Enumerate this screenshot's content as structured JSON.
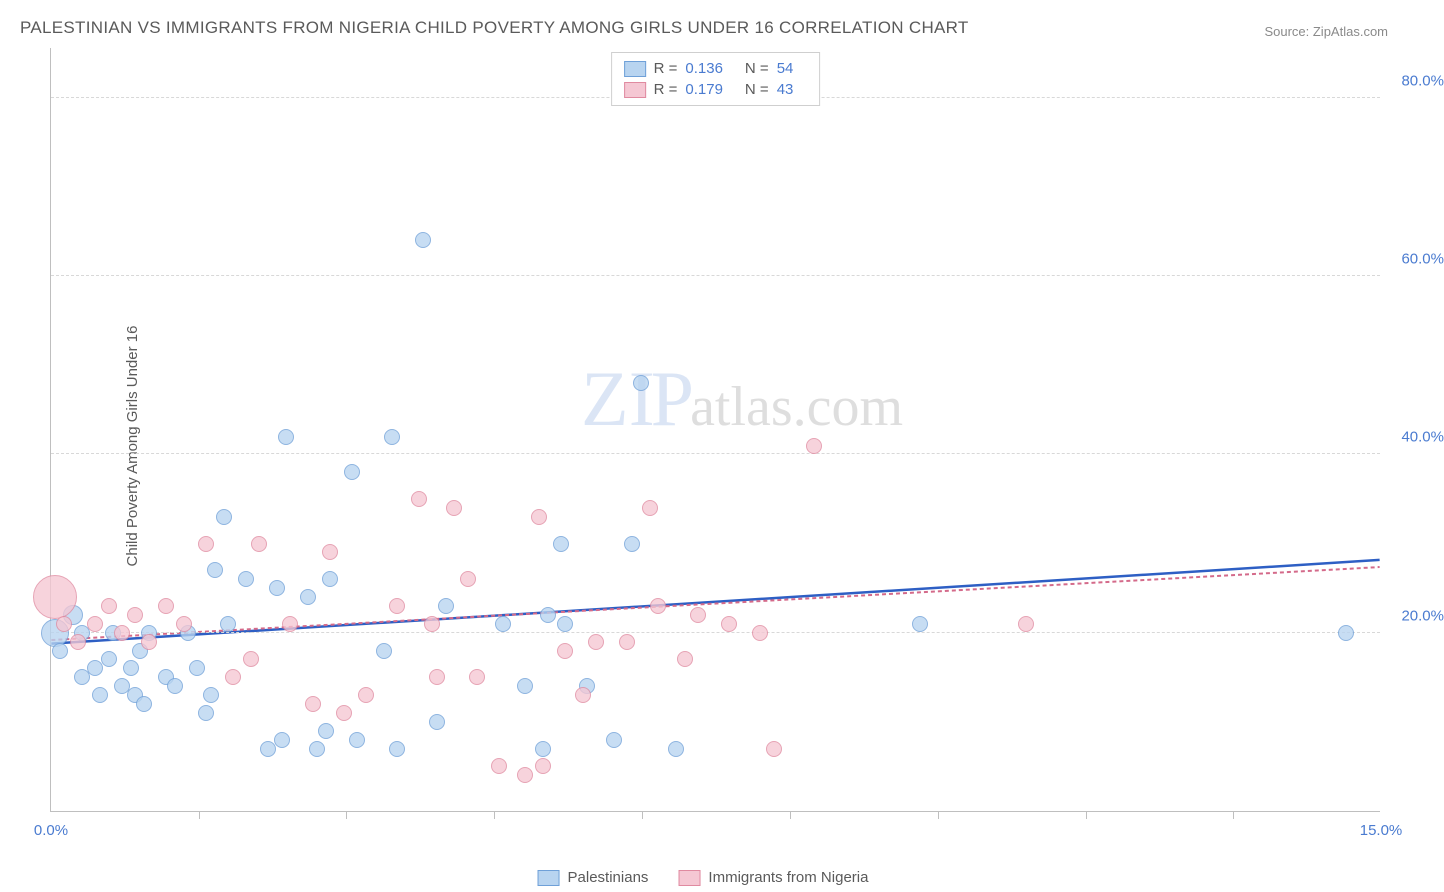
{
  "title": "PALESTINIAN VS IMMIGRANTS FROM NIGERIA CHILD POVERTY AMONG GIRLS UNDER 16 CORRELATION CHART",
  "source_label": "Source: ZipAtlas.com",
  "y_axis_label": "Child Poverty Among Girls Under 16",
  "watermark": {
    "zip": "ZIP",
    "atlas": "atlas.com"
  },
  "chart": {
    "type": "scatter",
    "xlim": [
      0,
      15.0
    ],
    "ylim": [
      0,
      85.7
    ],
    "x_ticks": [
      0.0,
      15.0
    ],
    "x_tick_labels": [
      "0.0%",
      "15.0%"
    ],
    "x_minor_ticks": [
      1.67,
      3.33,
      5.0,
      6.67,
      8.33,
      10.0,
      11.67,
      13.33
    ],
    "y_gridlines": [
      20.0,
      40.0,
      60.0,
      80.0
    ],
    "y_tick_labels": [
      "20.0%",
      "40.0%",
      "60.0%",
      "80.0%"
    ],
    "background_color": "#ffffff",
    "grid_color": "#d8d8d8",
    "axis_line_color": "#bfbfbf",
    "tick_label_color": "#4a7bd0",
    "axis_label_color": "#5a5a5a",
    "axis_label_fontsize": 15,
    "marker_radius": 8,
    "series": [
      {
        "name": "Palestinians",
        "fill_color": "#b8d4f0",
        "stroke_color": "#6fa0d8",
        "R": "0.136",
        "N": "54",
        "trend": {
          "x1": 0,
          "y1": 18.8,
          "x2": 15.0,
          "y2": 28.2,
          "color": "#2e5fc4",
          "width": 2.5
        },
        "points": [
          {
            "x": 0.05,
            "y": 20,
            "r": 14
          },
          {
            "x": 0.1,
            "y": 18,
            "r": 8
          },
          {
            "x": 0.25,
            "y": 22,
            "r": 10
          },
          {
            "x": 0.35,
            "y": 20,
            "r": 8
          },
          {
            "x": 0.35,
            "y": 15,
            "r": 8
          },
          {
            "x": 0.5,
            "y": 16,
            "r": 8
          },
          {
            "x": 0.55,
            "y": 13,
            "r": 8
          },
          {
            "x": 0.65,
            "y": 17,
            "r": 8
          },
          {
            "x": 0.7,
            "y": 20,
            "r": 8
          },
          {
            "x": 0.8,
            "y": 14,
            "r": 8
          },
          {
            "x": 0.9,
            "y": 16,
            "r": 8
          },
          {
            "x": 0.95,
            "y": 13,
            "r": 8
          },
          {
            "x": 1.0,
            "y": 18,
            "r": 8
          },
          {
            "x": 1.05,
            "y": 12,
            "r": 8
          },
          {
            "x": 1.1,
            "y": 20,
            "r": 8
          },
          {
            "x": 1.3,
            "y": 15,
            "r": 8
          },
          {
            "x": 1.4,
            "y": 14,
            "r": 8
          },
          {
            "x": 1.55,
            "y": 20,
            "r": 8
          },
          {
            "x": 1.65,
            "y": 16,
            "r": 8
          },
          {
            "x": 1.75,
            "y": 11,
            "r": 8
          },
          {
            "x": 1.8,
            "y": 13,
            "r": 8
          },
          {
            "x": 1.85,
            "y": 27,
            "r": 8
          },
          {
            "x": 1.95,
            "y": 33,
            "r": 8
          },
          {
            "x": 2.0,
            "y": 21,
            "r": 8
          },
          {
            "x": 2.2,
            "y": 26,
            "r": 8
          },
          {
            "x": 2.45,
            "y": 7,
            "r": 8
          },
          {
            "x": 2.55,
            "y": 25,
            "r": 8
          },
          {
            "x": 2.6,
            "y": 8,
            "r": 8
          },
          {
            "x": 2.65,
            "y": 42,
            "r": 8
          },
          {
            "x": 2.9,
            "y": 24,
            "r": 8
          },
          {
            "x": 3.0,
            "y": 7,
            "r": 8
          },
          {
            "x": 3.1,
            "y": 9,
            "r": 8
          },
          {
            "x": 3.15,
            "y": 26,
            "r": 8
          },
          {
            "x": 3.4,
            "y": 38,
            "r": 8
          },
          {
            "x": 3.45,
            "y": 8,
            "r": 8
          },
          {
            "x": 3.75,
            "y": 18,
            "r": 8
          },
          {
            "x": 3.85,
            "y": 42,
            "r": 8
          },
          {
            "x": 3.9,
            "y": 7,
            "r": 8
          },
          {
            "x": 4.2,
            "y": 64,
            "r": 8
          },
          {
            "x": 4.35,
            "y": 10,
            "r": 8
          },
          {
            "x": 4.45,
            "y": 23,
            "r": 8
          },
          {
            "x": 5.1,
            "y": 21,
            "r": 8
          },
          {
            "x": 5.35,
            "y": 14,
            "r": 8
          },
          {
            "x": 5.55,
            "y": 7,
            "r": 8
          },
          {
            "x": 5.6,
            "y": 22,
            "r": 8
          },
          {
            "x": 5.75,
            "y": 30,
            "r": 8
          },
          {
            "x": 5.8,
            "y": 21,
            "r": 8
          },
          {
            "x": 6.05,
            "y": 14,
            "r": 8
          },
          {
            "x": 6.35,
            "y": 8,
            "r": 8
          },
          {
            "x": 6.55,
            "y": 30,
            "r": 8
          },
          {
            "x": 6.65,
            "y": 48,
            "r": 8
          },
          {
            "x": 7.05,
            "y": 7,
            "r": 8
          },
          {
            "x": 9.8,
            "y": 21,
            "r": 8
          },
          {
            "x": 14.6,
            "y": 20,
            "r": 8
          }
        ]
      },
      {
        "name": "Immigrants from Nigeria",
        "fill_color": "#f5c7d3",
        "stroke_color": "#e08aa0",
        "R": "0.179",
        "N": "43",
        "trend": {
          "x1": 0,
          "y1": 19.2,
          "x2": 15.0,
          "y2": 27.4,
          "color": "#d46a8a",
          "width": 2,
          "dash": "4 3"
        },
        "points": [
          {
            "x": 0.05,
            "y": 24,
            "r": 22
          },
          {
            "x": 0.15,
            "y": 21,
            "r": 8
          },
          {
            "x": 0.3,
            "y": 19,
            "r": 8
          },
          {
            "x": 0.5,
            "y": 21,
            "r": 8
          },
          {
            "x": 0.65,
            "y": 23,
            "r": 8
          },
          {
            "x": 0.8,
            "y": 20,
            "r": 8
          },
          {
            "x": 0.95,
            "y": 22,
            "r": 8
          },
          {
            "x": 1.1,
            "y": 19,
            "r": 8
          },
          {
            "x": 1.3,
            "y": 23,
            "r": 8
          },
          {
            "x": 1.5,
            "y": 21,
            "r": 8
          },
          {
            "x": 1.75,
            "y": 30,
            "r": 8
          },
          {
            "x": 2.05,
            "y": 15,
            "r": 8
          },
          {
            "x": 2.25,
            "y": 17,
            "r": 8
          },
          {
            "x": 2.35,
            "y": 30,
            "r": 8
          },
          {
            "x": 2.7,
            "y": 21,
            "r": 8
          },
          {
            "x": 2.95,
            "y": 12,
            "r": 8
          },
          {
            "x": 3.15,
            "y": 29,
            "r": 8
          },
          {
            "x": 3.3,
            "y": 11,
            "r": 8
          },
          {
            "x": 3.55,
            "y": 13,
            "r": 8
          },
          {
            "x": 3.9,
            "y": 23,
            "r": 8
          },
          {
            "x": 4.15,
            "y": 35,
            "r": 8
          },
          {
            "x": 4.3,
            "y": 21,
            "r": 8
          },
          {
            "x": 4.35,
            "y": 15,
            "r": 8
          },
          {
            "x": 4.55,
            "y": 34,
            "r": 8
          },
          {
            "x": 4.7,
            "y": 26,
            "r": 8
          },
          {
            "x": 4.8,
            "y": 15,
            "r": 8
          },
          {
            "x": 5.05,
            "y": 5,
            "r": 8
          },
          {
            "x": 5.35,
            "y": 4,
            "r": 8
          },
          {
            "x": 5.5,
            "y": 33,
            "r": 8
          },
          {
            "x": 5.55,
            "y": 5,
            "r": 8
          },
          {
            "x": 5.8,
            "y": 18,
            "r": 8
          },
          {
            "x": 6.0,
            "y": 13,
            "r": 8
          },
          {
            "x": 6.15,
            "y": 19,
            "r": 8
          },
          {
            "x": 6.5,
            "y": 19,
            "r": 8
          },
          {
            "x": 6.75,
            "y": 34,
            "r": 8
          },
          {
            "x": 6.85,
            "y": 23,
            "r": 8
          },
          {
            "x": 7.15,
            "y": 17,
            "r": 8
          },
          {
            "x": 7.3,
            "y": 22,
            "r": 8
          },
          {
            "x": 7.65,
            "y": 21,
            "r": 8
          },
          {
            "x": 8.0,
            "y": 20,
            "r": 8
          },
          {
            "x": 8.15,
            "y": 7,
            "r": 8
          },
          {
            "x": 8.6,
            "y": 41,
            "r": 8
          },
          {
            "x": 11.0,
            "y": 21,
            "r": 8
          }
        ]
      }
    ]
  },
  "legend_top": {
    "rows": [
      {
        "swatch_fill": "#b8d4f0",
        "swatch_stroke": "#6fa0d8",
        "r_label": "R =",
        "r_val": "0.136",
        "n_label": "N =",
        "n_val": "54"
      },
      {
        "swatch_fill": "#f5c7d3",
        "swatch_stroke": "#e08aa0",
        "r_label": "R =",
        "r_val": "0.179",
        "n_label": "N =",
        "n_val": "43"
      }
    ]
  },
  "legend_bottom": {
    "items": [
      {
        "swatch_fill": "#b8d4f0",
        "swatch_stroke": "#6fa0d8",
        "label": "Palestinians"
      },
      {
        "swatch_fill": "#f5c7d3",
        "swatch_stroke": "#e08aa0",
        "label": "Immigrants from Nigeria"
      }
    ]
  }
}
